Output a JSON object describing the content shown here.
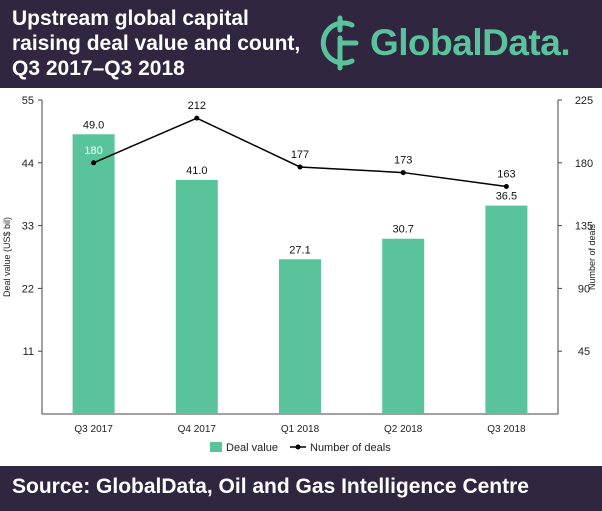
{
  "header": {
    "title_lines": [
      "Upstream global capital",
      "raising deal value and count,",
      "Q3 2017–Q3 2018"
    ],
    "logo_text": "GlobalData."
  },
  "footer": {
    "source": "Source: GlobalData, Oil and Gas Intelligence Centre"
  },
  "colors": {
    "header_bg": "#30263f",
    "bar": "#59c49b",
    "line": "#000000",
    "brand": "#59c49b"
  },
  "chart_data": {
    "type": "bar",
    "categories": [
      "Q3 2017",
      "Q4 2017",
      "Q1 2018",
      "Q2 2018",
      "Q3 2018"
    ],
    "series": [
      {
        "name": "Deal value",
        "type": "bar",
        "axis": "left",
        "values": [
          49.0,
          41.0,
          27.1,
          30.7,
          36.5
        ],
        "labels": [
          "49.0",
          "41.0",
          "27.1",
          "30.7",
          "36.5"
        ]
      },
      {
        "name": "Number of deals",
        "type": "line",
        "axis": "right",
        "values": [
          180,
          212,
          177,
          173,
          163
        ],
        "labels": [
          "180",
          "212",
          "177",
          "173",
          "163"
        ]
      }
    ],
    "ylabel": "Deal value (US$ bil)",
    "y2label": "Number of deals",
    "ylim": [
      0,
      55
    ],
    "y2lim": [
      0,
      225
    ],
    "yticks": [
      "11",
      "22",
      "33",
      "44",
      "55"
    ],
    "y2ticks": [
      "45",
      "90",
      "135",
      "180",
      "225"
    ],
    "legend": [
      "Deal value",
      "Number of deals"
    ],
    "legend_position": "bottom",
    "grid": false
  }
}
